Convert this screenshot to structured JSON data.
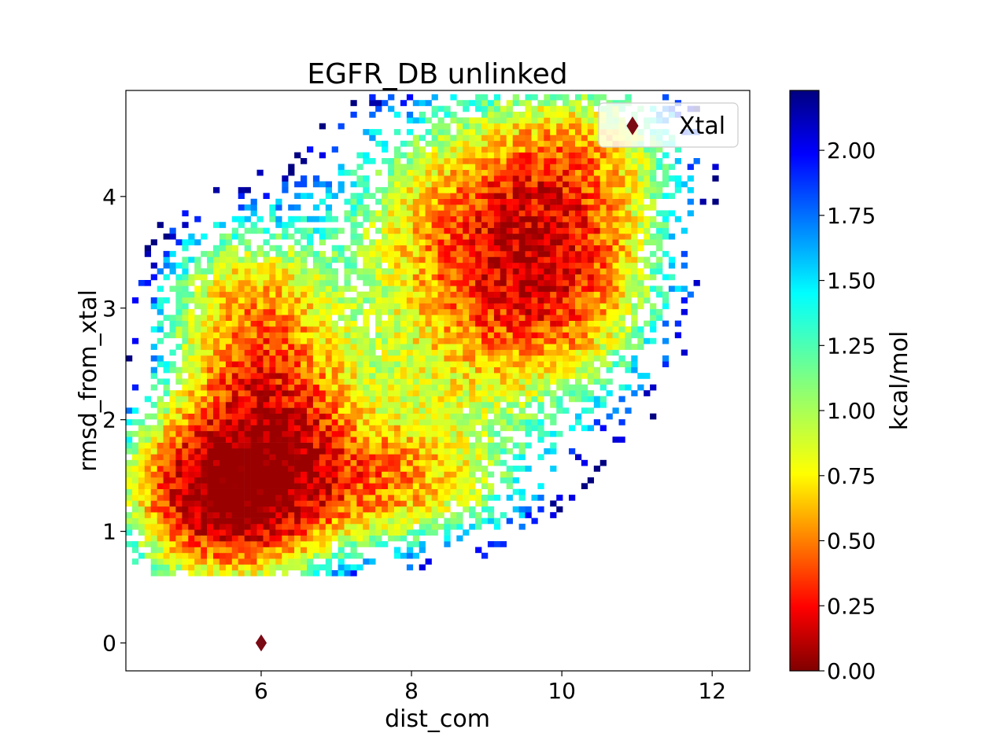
{
  "chart_data": {
    "type": "heatmap",
    "title": "EGFR_DB unlinked",
    "xlabel": "dist_com",
    "ylabel": "rmsd_from_xtal",
    "xlim": [
      4.2,
      12.5
    ],
    "ylim": [
      -0.25,
      4.95
    ],
    "x_ticks": [
      "6",
      "8",
      "10",
      "12"
    ],
    "y_ticks": [
      "0",
      "1",
      "2",
      "3",
      "4"
    ],
    "grid": false,
    "legend": {
      "placement": "top-right",
      "entries": [
        {
          "label": "Xtal",
          "marker": "diamond",
          "color": "#7a0a14"
        }
      ]
    },
    "reference_point": {
      "name": "Xtal",
      "x": 6.0,
      "y": 0.0,
      "color": "#7a0a14"
    },
    "colorbar": {
      "label": "kcal/mol",
      "colormap": "jet_r",
      "range": [
        0.0,
        2.23
      ],
      "ticks": [
        "0.00",
        "0.25",
        "0.50",
        "0.75",
        "1.00",
        "1.25",
        "1.50",
        "1.75",
        "2.00"
      ]
    },
    "free_energy_basins": [
      {
        "x": 5.55,
        "y": 1.33,
        "min_kcal_mol": 0.2
      },
      {
        "x": 6.1,
        "y": 1.9,
        "min_kcal_mol": 0.45
      },
      {
        "x": 9.75,
        "y": 3.4,
        "min_kcal_mol": 0.3
      },
      {
        "x": 5.9,
        "y": 2.95,
        "min_kcal_mol": 0.9
      },
      {
        "x": 7.7,
        "y": 1.35,
        "min_kcal_mol": 1.2
      }
    ]
  }
}
